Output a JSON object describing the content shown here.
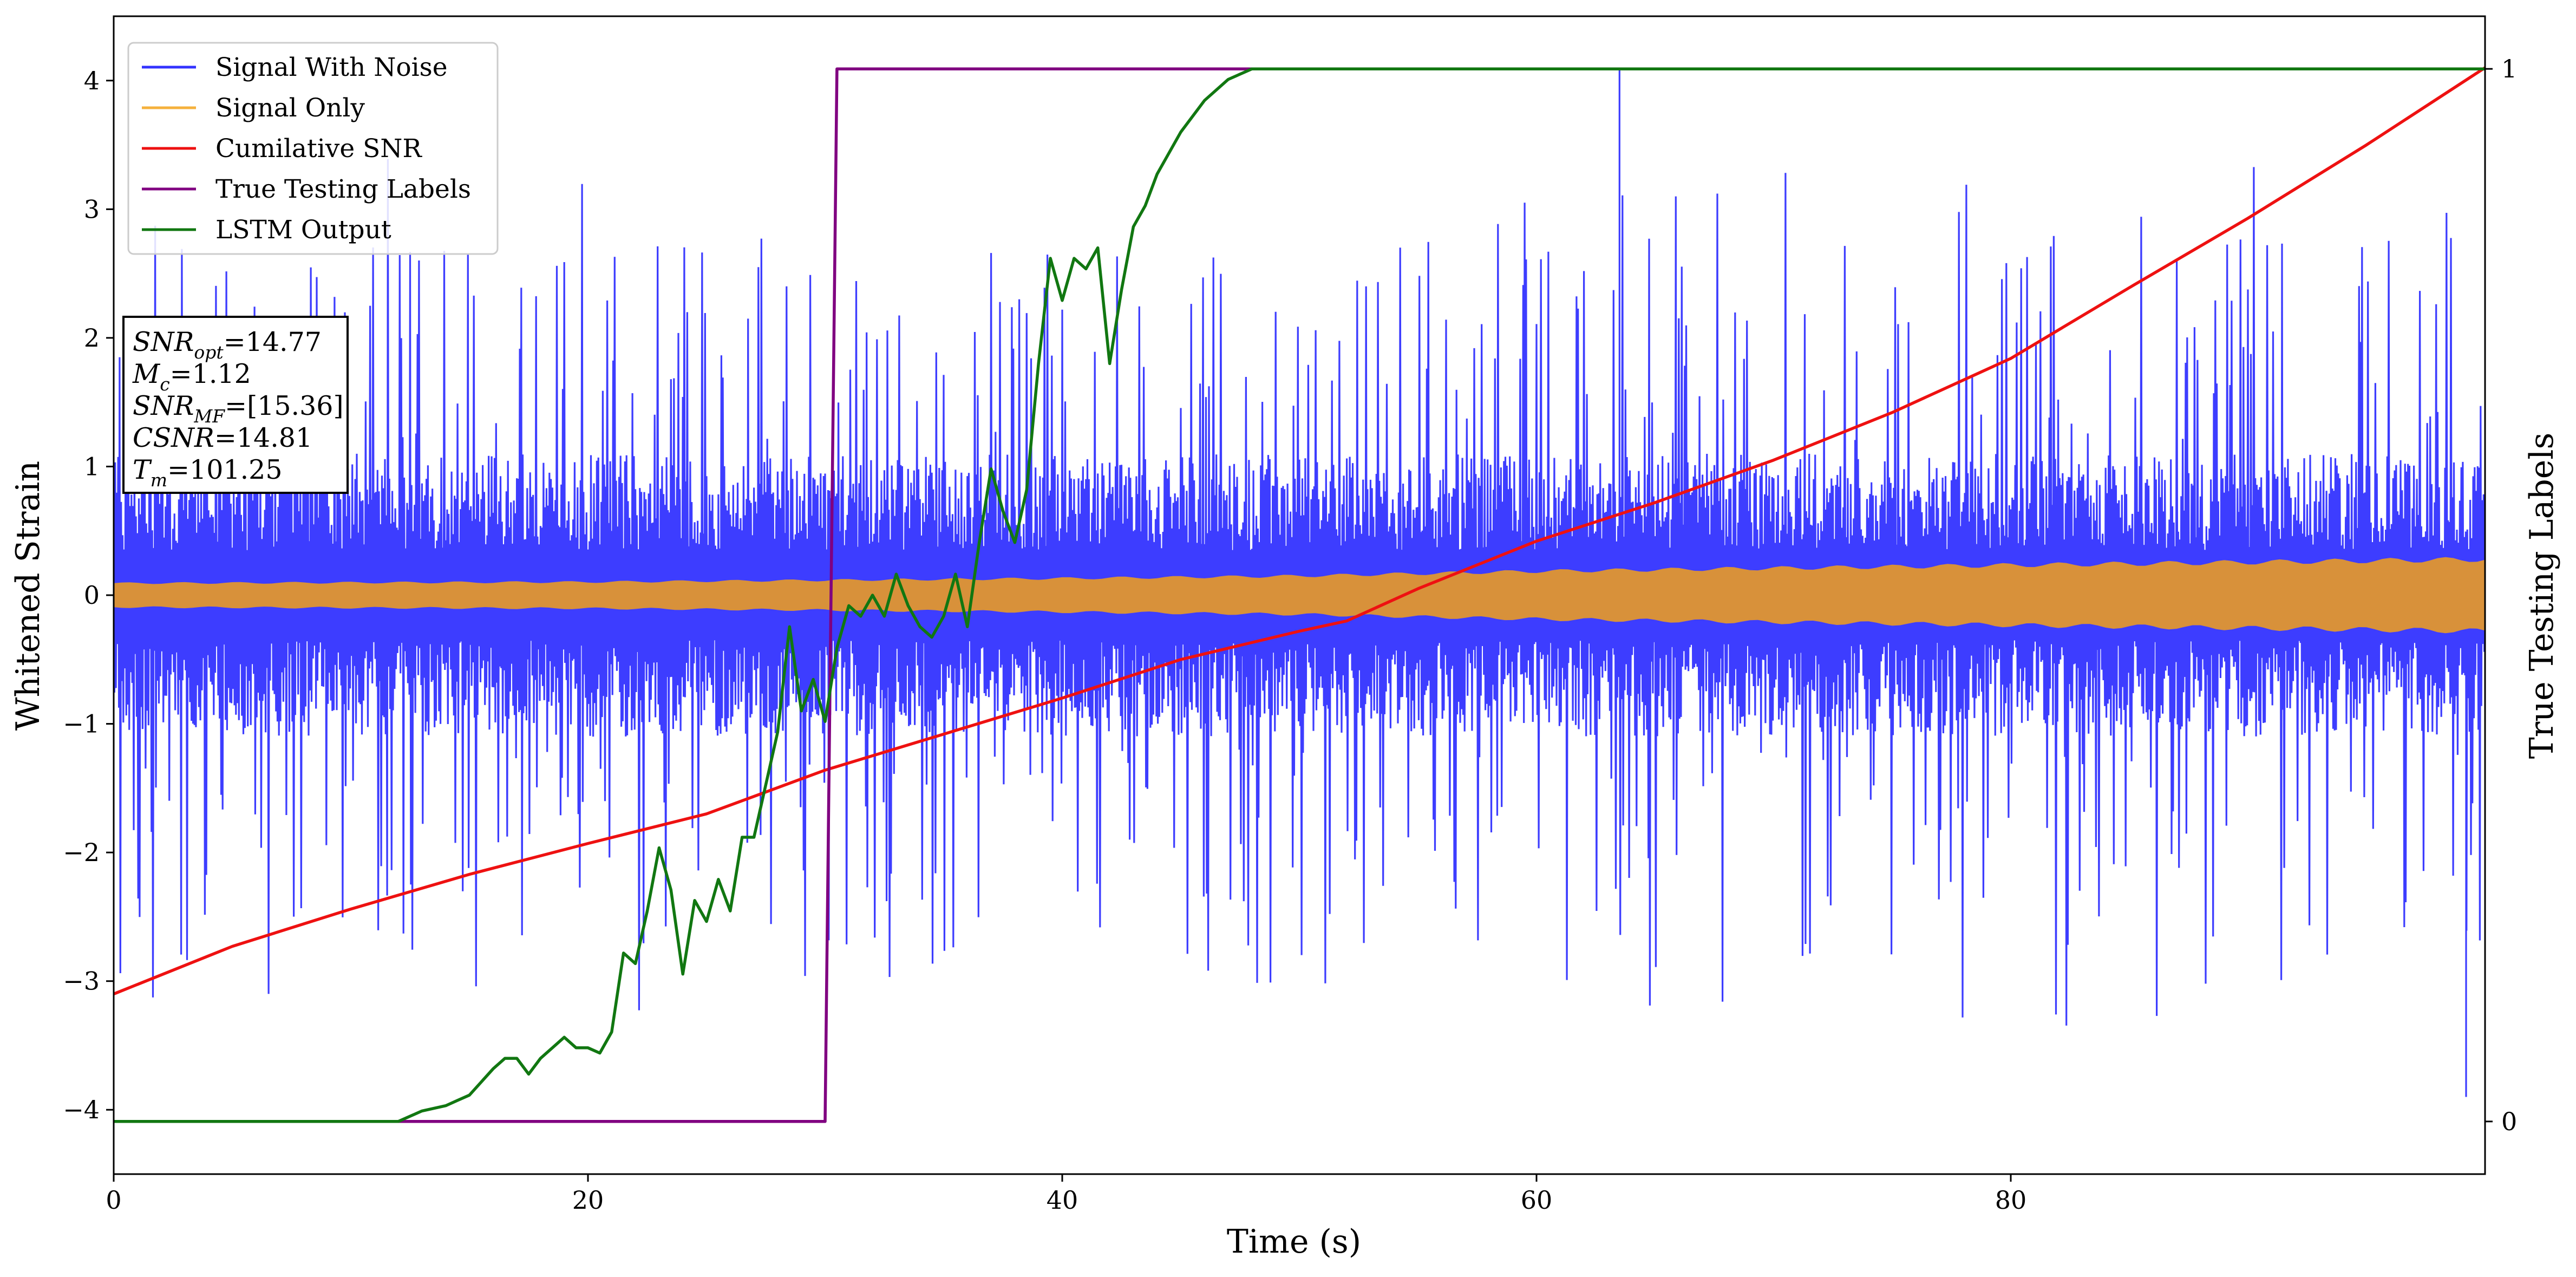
{
  "chart_data": {
    "type": "line",
    "xlabel": "Time (s)",
    "ylabel": "Whitened Strain",
    "y2label": "True Testing Labels",
    "xlim": [
      0,
      100
    ],
    "ylim": [
      -4.5,
      4.5
    ],
    "y2lim": [
      -0.05,
      1.05
    ],
    "xticks": [
      0,
      20,
      40,
      60,
      80
    ],
    "yticks": [
      -4,
      -3,
      -2,
      -1,
      0,
      1,
      2,
      3,
      4
    ],
    "y2ticks": [
      0,
      1
    ],
    "grid": false,
    "legend_position": "upper-left",
    "legend": [
      {
        "label": "Signal With Noise",
        "color": "#3333ff"
      },
      {
        "label": "Signal Only",
        "color": "#f5b13d"
      },
      {
        "label": "Cumilative SNR",
        "color": "#ee1111"
      },
      {
        "label": "True Testing Labels",
        "color": "#800080"
      },
      {
        "label": "LSTM Output",
        "color": "#117711"
      }
    ],
    "annotation": [
      {
        "main": "SNR",
        "sub": "opt",
        "rest": "=14.77"
      },
      {
        "main": "M",
        "sub": "c",
        "rest": "=1.12"
      },
      {
        "main": "SNR",
        "sub": "MF",
        "rest": "=[15.36]"
      },
      {
        "main": "CSNR",
        "sub": "",
        "rest": "=14.81"
      },
      {
        "main": "T",
        "sub": "m",
        "rest": "=101.25"
      }
    ],
    "series": [
      {
        "name": "Signal With Noise",
        "axis": "left",
        "style": "noise",
        "band": {
          "core_abs": 1.0,
          "spike_min": -3.9,
          "spike_max": 4.1,
          "spike_at_x": 63.5
        }
      },
      {
        "name": "Signal Only",
        "axis": "left",
        "style": "envelope",
        "envelope": {
          "x": [
            0,
            20,
            40,
            50,
            60,
            80,
            100
          ],
          "amp": [
            0.1,
            0.11,
            0.14,
            0.16,
            0.2,
            0.25,
            0.3
          ]
        }
      },
      {
        "name": "Cumilative SNR",
        "axis": "left",
        "x": [
          0,
          5,
          10,
          15,
          20,
          25,
          30,
          35,
          40,
          45,
          50,
          52,
          55,
          60,
          65,
          70,
          75,
          80,
          85,
          90,
          95,
          100
        ],
        "y": [
          -3.1,
          -2.73,
          -2.44,
          -2.17,
          -1.93,
          -1.7,
          -1.36,
          -1.08,
          -0.8,
          -0.5,
          -0.28,
          -0.2,
          0.05,
          0.42,
          0.72,
          1.05,
          1.42,
          1.84,
          2.39,
          2.93,
          3.5,
          4.1
        ]
      },
      {
        "name": "True Testing Labels",
        "axis": "right",
        "x": [
          0,
          30,
          30.5,
          60
        ],
        "y": [
          0,
          0,
          1,
          1
        ]
      },
      {
        "name": "LSTM Output",
        "axis": "right",
        "x": [
          0,
          10,
          12,
          13,
          14,
          14.5,
          15,
          16,
          16.5,
          17,
          17.5,
          18,
          18.5,
          19,
          19.5,
          20,
          20.5,
          21,
          21.5,
          22,
          22.5,
          23,
          23.5,
          24,
          24.5,
          25,
          25.5,
          26,
          26.5,
          27,
          27.5,
          28,
          28.5,
          29,
          29.5,
          30,
          30.5,
          31,
          31.5,
          32,
          32.5,
          33,
          33.5,
          34,
          34.5,
          35,
          35.5,
          36,
          36.5,
          37,
          37.5,
          38,
          38.5,
          39,
          39.5,
          40,
          40.5,
          41,
          41.5,
          42,
          42.5,
          43,
          43.5,
          44,
          45,
          46,
          47,
          48,
          50,
          55,
          60,
          100
        ],
        "y": [
          0,
          0,
          0.0,
          0.01,
          0.015,
          0.02,
          0.025,
          0.05,
          0.06,
          0.06,
          0.045,
          0.06,
          0.07,
          0.08,
          0.07,
          0.07,
          0.065,
          0.085,
          0.16,
          0.15,
          0.2,
          0.26,
          0.22,
          0.14,
          0.21,
          0.19,
          0.23,
          0.2,
          0.27,
          0.27,
          0.32,
          0.37,
          0.47,
          0.39,
          0.42,
          0.38,
          0.45,
          0.49,
          0.48,
          0.5,
          0.48,
          0.52,
          0.49,
          0.47,
          0.46,
          0.48,
          0.52,
          0.47,
          0.55,
          0.62,
          0.58,
          0.55,
          0.6,
          0.72,
          0.82,
          0.78,
          0.82,
          0.81,
          0.83,
          0.72,
          0.79,
          0.85,
          0.87,
          0.9,
          0.94,
          0.97,
          0.99,
          1.0,
          1.0,
          1.0,
          1.0,
          1.0
        ]
      }
    ]
  }
}
